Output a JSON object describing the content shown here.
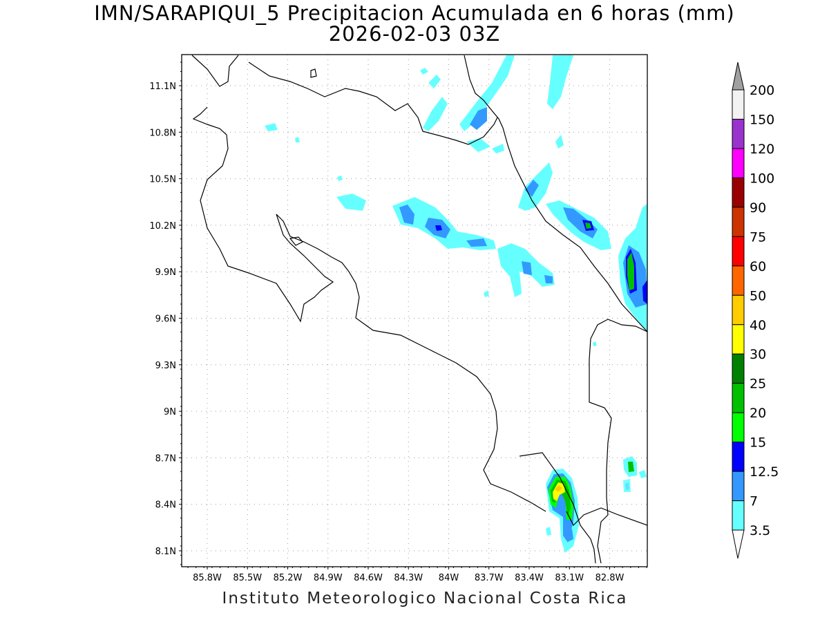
{
  "title": {
    "line1": "IMN/SARAPIQUI_5 Precipitacion Acumulada en 6 horas (mm)",
    "line2": "2026-02-03 03Z"
  },
  "footer": "Instituto Meteorologico Nacional Costa Rica",
  "axes": {
    "lat_labels": [
      "11.1N",
      "10.8N",
      "10.5N",
      "10.2N",
      "9.9N",
      "9.6N",
      "9.3N",
      "9N",
      "8.7N",
      "8.4N",
      "8.1N"
    ],
    "lon_labels": [
      "85.8W",
      "85.5W",
      "85.2W",
      "84.9W",
      "84.6W",
      "84.3W",
      "84W",
      "83.7W",
      "83.4W",
      "83.1W",
      "82.8W"
    ]
  },
  "colorbar": {
    "levels": [
      "200",
      "150",
      "120",
      "100",
      "90",
      "75",
      "60",
      "50",
      "40",
      "30",
      "25",
      "20",
      "15",
      "12.5",
      "7",
      "3.5"
    ],
    "colors": [
      "#f2f2f2",
      "#9a32cd",
      "#ff00ff",
      "#990000",
      "#cc3300",
      "#ff0000",
      "#ff6600",
      "#ffcc00",
      "#ffff00",
      "#008000",
      "#00c000",
      "#00ff00",
      "#0000ff",
      "#3399ff",
      "#66ffff"
    ],
    "over_color": "#a0a0a0",
    "under_color": "#ffffff"
  },
  "colors": {
    "c3_5": "#66ffff",
    "c7": "#3399ff",
    "c12_5": "#0000ff",
    "c15": "#00ff00",
    "c20": "#00c000",
    "c25": "#008000",
    "c30": "#ffff00",
    "c40": "#ffcc00"
  }
}
